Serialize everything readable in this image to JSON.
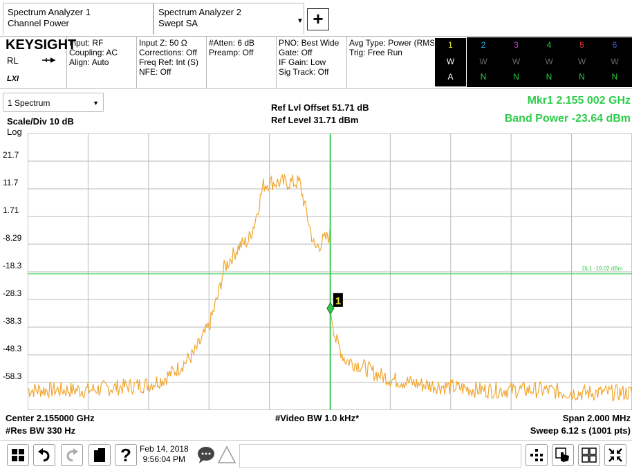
{
  "tabs": [
    {
      "line1": "Spectrum Analyzer 1",
      "line2": "Channel Power"
    },
    {
      "line1": "Spectrum Analyzer 2",
      "line2": "Swept SA"
    }
  ],
  "tab_dropdown_arrow": "▼",
  "add_tab_label": "+",
  "brand": "KEYSIGHT",
  "rl_label": "RL",
  "lxi_label": "LXI",
  "settings": {
    "col1": [
      "Input: RF",
      "Coupling: AC",
      "Align: Auto"
    ],
    "col2": [
      "Input Z: 50 Ω",
      "Corrections: Off",
      "Freq Ref: Int (S)",
      "NFE: Off"
    ],
    "col3": [
      "#Atten: 6 dB",
      "Preamp: Off"
    ],
    "col4": [
      "PNO: Best Wide",
      "Gate: Off",
      "IF Gain: Low",
      "Sig Track: Off"
    ],
    "col5": [
      "Avg Type: Power (RMS)",
      "Trig: Free Run"
    ]
  },
  "traces": [
    {
      "num": "1",
      "mode": "W",
      "det": "A",
      "color": "#f2e830",
      "mode_color": "#ffffff",
      "det_color": "#ffffff"
    },
    {
      "num": "2",
      "mode": "W",
      "det": "N",
      "color": "#27b4e8",
      "mode_color": "#6a6a6a",
      "det_color": "#2ecc4a"
    },
    {
      "num": "3",
      "mode": "W",
      "det": "N",
      "color": "#c03cd8",
      "mode_color": "#6a6a6a",
      "det_color": "#2ecc4a"
    },
    {
      "num": "4",
      "mode": "W",
      "det": "N",
      "color": "#2ecc4a",
      "mode_color": "#6a6a6a",
      "det_color": "#2ecc4a"
    },
    {
      "num": "5",
      "mode": "W",
      "det": "N",
      "color": "#e8342a",
      "mode_color": "#6a6a6a",
      "det_color": "#2ecc4a"
    },
    {
      "num": "6",
      "mode": "W",
      "det": "N",
      "color": "#3a62e8",
      "mode_color": "#6a6a6a",
      "det_color": "#2ecc4a"
    }
  ],
  "view_select": "1 Spectrum",
  "view_select_arrow": "▼",
  "scale_div": "Scale/Div 10 dB",
  "log_label": "Log",
  "ref_offset": "Ref Lvl Offset 51.71 dB",
  "ref_level": "Ref Level 31.71 dBm",
  "marker_freq": "Mkr1  2.155 002 GHz",
  "band_power": "Band Power -23.64 dBm",
  "star": "*",
  "display_line_label": "DL1 -19.02 dBm",
  "marker_label": "1",
  "y_ticks": [
    "21.7",
    "11.7",
    "1.71",
    "-8.29",
    "-18.3",
    "-28.3",
    "-38.3",
    "-48.3",
    "-58.3"
  ],
  "footer": {
    "center": "Center 2.155000 GHz",
    "res_bw": "#Res BW 330 Hz",
    "video_bw": "#Video BW 1.0 kHz*",
    "span": "Span 2.000 MHz",
    "sweep": "Sweep 6.12 s (1001 pts)"
  },
  "date": "Feb 14, 2018",
  "time": "9:56:04 PM",
  "colors": {
    "trace": "#f0a630",
    "accent": "#2ecc4a",
    "grid": "#b9b9b9",
    "star": "#f0a630"
  },
  "chart_data": {
    "type": "line",
    "ylabel": "",
    "ylim": [
      -68.29,
      31.71
    ],
    "y_scale_per_div": 10,
    "x_center_ghz": 2.155,
    "x_span_mhz": 2.0,
    "xlim_mhz": [
      -1.0,
      1.0
    ],
    "grid": true,
    "display_line_dbm": -19.02,
    "marker": {
      "freq_ghz": 2.155002,
      "freq_offset_mhz": 0.002,
      "level_dbm": -31.5
    },
    "series": [
      {
        "x": [
          -1.0,
          -0.9,
          -0.8,
          -0.7,
          -0.6,
          -0.55,
          -0.5,
          -0.45,
          -0.4,
          -0.37,
          -0.35,
          -0.3,
          -0.27,
          -0.25,
          -0.22,
          -0.2,
          -0.1,
          0.0,
          -0.05,
          0.002,
          0.02,
          0.05,
          0.1,
          0.15,
          0.2,
          0.3,
          0.4,
          0.5,
          0.6,
          0.7,
          0.8,
          0.9,
          1.0
        ],
        "values": [
          -61,
          -61,
          -61,
          -60,
          -59,
          -57,
          -53,
          -48,
          -38,
          -27,
          -17,
          -9,
          -7,
          -1,
          13,
          14,
          14,
          -5,
          -10,
          -31.5,
          -43,
          -50,
          -52,
          -55,
          -57,
          -59,
          -60,
          -61,
          -61,
          -61,
          -62,
          -62,
          -62
        ]
      }
    ]
  }
}
